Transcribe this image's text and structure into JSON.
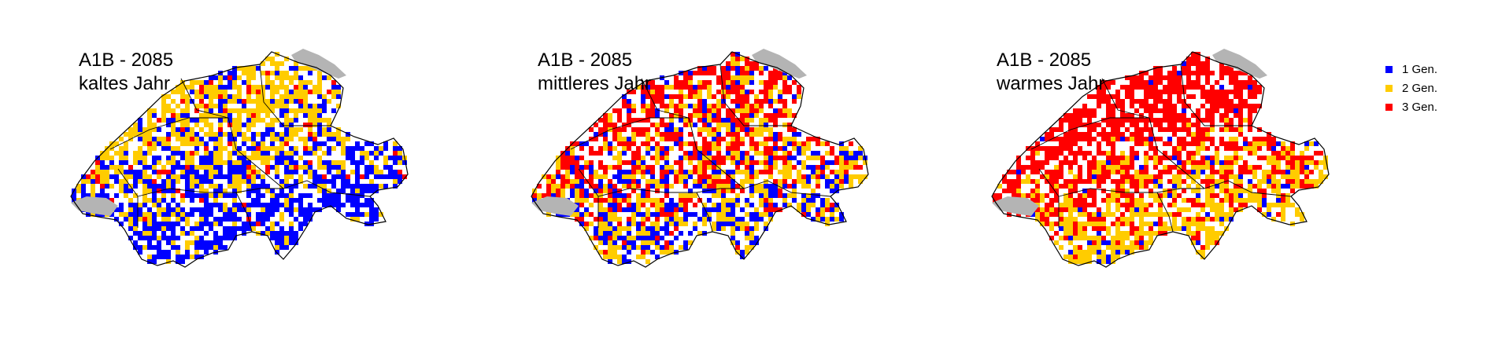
{
  "maps": [
    {
      "scenario": "A1B - 2085",
      "year_type": "kaltes Jahr",
      "shares": {
        "1 Gen.": 0.45,
        "2 Gen.": 0.5,
        "3 Gen.": 0.05
      }
    },
    {
      "scenario": "A1B - 2085",
      "year_type": "mittleres Jahr",
      "shares": {
        "1 Gen.": 0.25,
        "2 Gen.": 0.35,
        "3 Gen.": 0.4
      }
    },
    {
      "scenario": "A1B - 2085",
      "year_type": "warmes Jahr",
      "shares": {
        "1 Gen.": 0.05,
        "2 Gen.": 0.3,
        "3 Gen.": 0.65
      }
    }
  ],
  "legend": [
    {
      "label": "1 Gen.",
      "color": "#0000ff"
    },
    {
      "label": "2 Gen.",
      "color": "#ffcc00"
    },
    {
      "label": "3 Gen.",
      "color": "#ff0000"
    }
  ],
  "colors": {
    "lake": "#b4b4b4",
    "border": "#000000"
  }
}
